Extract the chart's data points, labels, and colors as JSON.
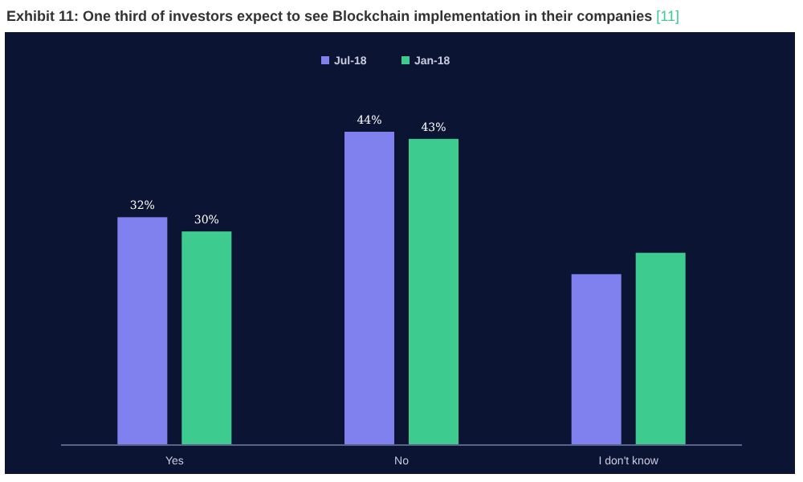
{
  "chart_data": {
    "type": "bar",
    "title": "Exhibit 11: One third of investors expect to see Blockchain implementation in their companies [11]",
    "categories": [
      "Yes",
      "No",
      "I don't know"
    ],
    "series": [
      {
        "name": "Jul-18",
        "color": "#8080ee",
        "values": [
          32,
          44,
          24
        ],
        "value_labels": [
          "32%",
          "44%",
          null
        ]
      },
      {
        "name": "Jan-18",
        "color": "#3ecb8f",
        "values": [
          30,
          43,
          27
        ],
        "value_labels": [
          "30%",
          "43%",
          null
        ]
      }
    ],
    "legend": "top",
    "relative": false
  }
}
